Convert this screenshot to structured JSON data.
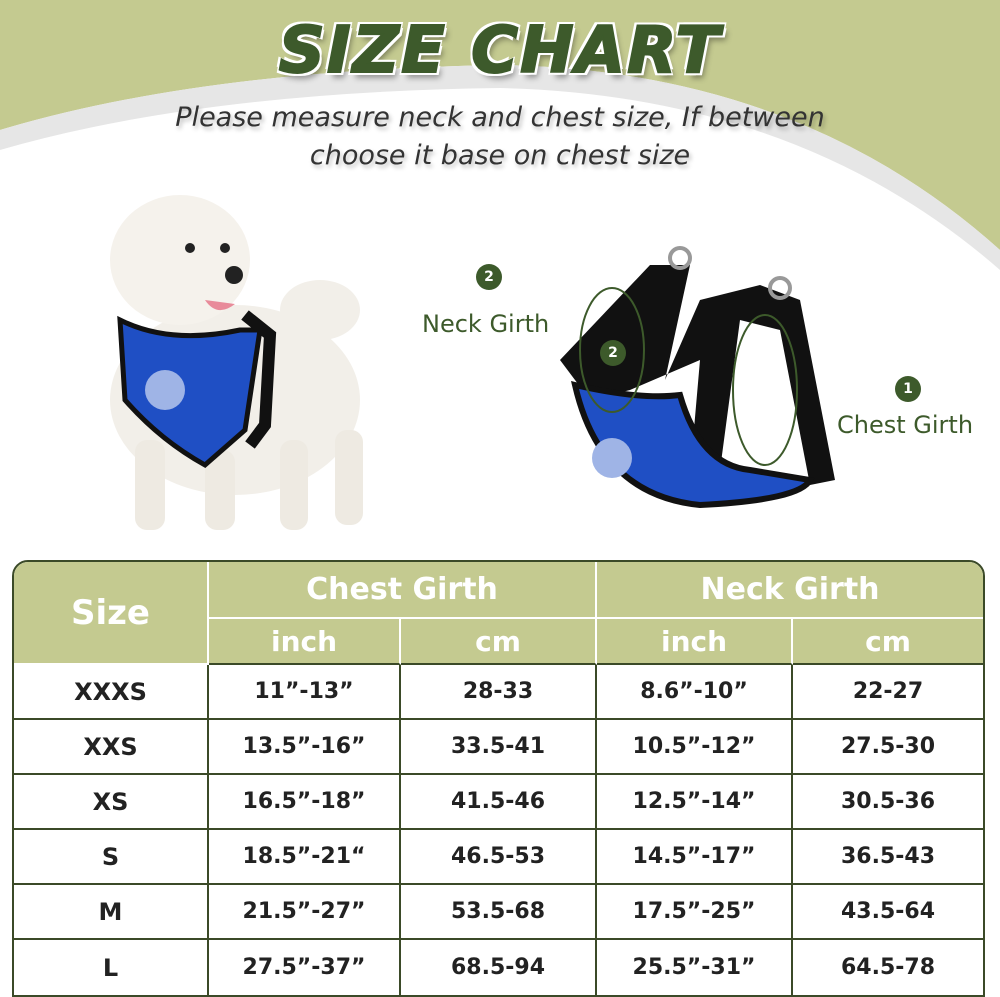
{
  "header": {
    "title": "SIZE CHART",
    "subtitle_line1": "Please measure neck and chest size, If between",
    "subtitle_line2": "choose it base on chest size"
  },
  "diagram": {
    "neck_number": "2",
    "neck_label": "Neck Girth",
    "neck_inner_number": "2",
    "chest_number": "1",
    "chest_label": "Chest Girth"
  },
  "colors": {
    "green_bg": "#c4ca90",
    "dark_green": "#3d5a2b",
    "harness_blue": "#1f4fc4"
  },
  "table": {
    "size_header": "Size",
    "chest_header": "Chest Girth",
    "neck_header": "Neck Girth",
    "units": [
      "inch",
      "cm",
      "inch",
      "cm"
    ],
    "rows": [
      [
        "XXXS",
        "11”-13”",
        "28-33",
        "8.6”-10”",
        "22-27"
      ],
      [
        "XXS",
        "13.5”-16”",
        "33.5-41",
        "10.5”-12”",
        "27.5-30"
      ],
      [
        "XS",
        "16.5”-18”",
        "41.5-46",
        "12.5”-14”",
        "30.5-36"
      ],
      [
        "S",
        "18.5”-21“",
        "46.5-53",
        "14.5”-17”",
        "36.5-43"
      ],
      [
        "M",
        "21.5”-27”",
        "53.5-68",
        "17.5”-25”",
        "43.5-64"
      ],
      [
        "L",
        "27.5”-37”",
        "68.5-94",
        "25.5”-31”",
        "64.5-78"
      ]
    ]
  }
}
